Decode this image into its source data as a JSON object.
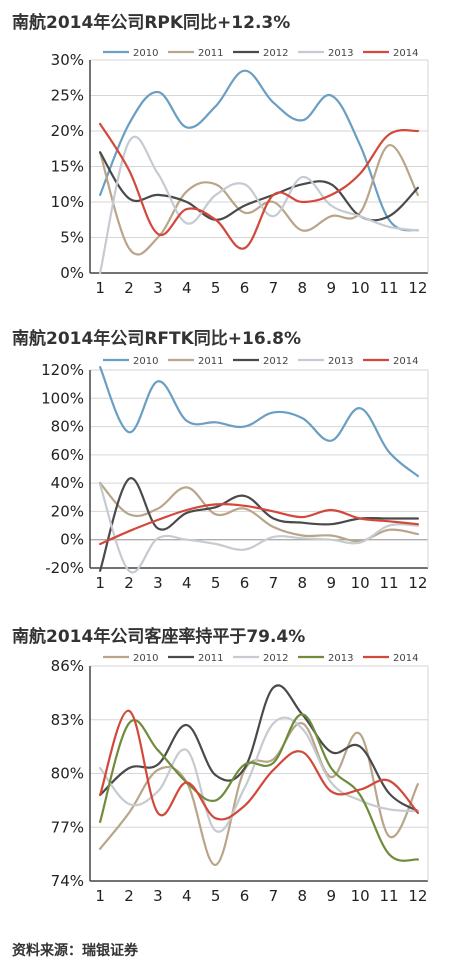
{
  "charts": [
    {
      "title": "南航2014年公司RPK同比+12.3%",
      "chart_data": {
        "type": "line",
        "categories": [
          "1",
          "2",
          "3",
          "4",
          "5",
          "6",
          "7",
          "8",
          "9",
          "10",
          "11",
          "12"
        ],
        "ylim": [
          0,
          30
        ],
        "yticks": [
          0,
          5,
          10,
          15,
          20,
          25,
          30
        ],
        "yticklabels": [
          "0%",
          "5%",
          "10%",
          "15%",
          "20%",
          "25%",
          "30%"
        ],
        "series": [
          {
            "name": "2010",
            "color": "#6a9ec2",
            "values": [
              11,
              21,
              25.5,
              20.5,
              23.5,
              28.5,
              24,
              21.5,
              25,
              18,
              7.5,
              6
            ]
          },
          {
            "name": "2011",
            "color": "#b9a58a",
            "values": [
              17,
              3.5,
              5,
              11.5,
              12.5,
              8.5,
              10,
              6,
              8,
              8.5,
              18,
              11
            ]
          },
          {
            "name": "2012",
            "color": "#4a4a4a",
            "values": [
              17,
              10.5,
              11,
              10,
              7.5,
              9.5,
              11,
              12.5,
              12.5,
              8,
              8,
              12
            ]
          },
          {
            "name": "2013",
            "color": "#c5cbd1",
            "values": [
              0,
              18.5,
              14,
              7,
              11,
              12.5,
              8,
              13.5,
              9.5,
              8,
              6.5,
              6
            ]
          },
          {
            "name": "2014",
            "color": "#d2493b",
            "values": [
              21,
              14.5,
              5.5,
              9,
              7.5,
              3.5,
              11,
              10,
              11,
              14,
              19.5,
              20
            ]
          }
        ]
      }
    },
    {
      "title": "南航2014年公司RFTK同比+16.8%",
      "chart_data": {
        "type": "line",
        "categories": [
          "1",
          "2",
          "3",
          "4",
          "5",
          "6",
          "7",
          "8",
          "9",
          "10",
          "11",
          "12"
        ],
        "ylim": [
          -20,
          120
        ],
        "yticks": [
          -20,
          0,
          20,
          40,
          60,
          80,
          100,
          120
        ],
        "yticklabels": [
          "-20%",
          "0%",
          "20%",
          "40%",
          "60%",
          "80%",
          "100%",
          "120%"
        ],
        "series": [
          {
            "name": "2010",
            "color": "#6a9ec2",
            "values": [
              122,
              76,
              112,
              84,
              83,
              80,
              90,
              86,
              70,
              93,
              62,
              45
            ]
          },
          {
            "name": "2011",
            "color": "#b9a58a",
            "values": [
              40,
              18,
              22,
              37,
              18,
              22,
              9,
              3,
              3,
              -1,
              7,
              4
            ]
          },
          {
            "name": "2012",
            "color": "#4a4a4a",
            "values": [
              -22,
              43,
              8,
              19,
              23,
              31,
              15,
              12,
              11,
              15,
              15,
              15
            ]
          },
          {
            "name": "2013",
            "color": "#c5cbd1",
            "values": [
              39,
              -22,
              1,
              0,
              -3,
              -7,
              2,
              1,
              0,
              -2,
              10,
              10
            ]
          },
          {
            "name": "2014",
            "color": "#d2493b",
            "values": [
              -3,
              6,
              14,
              21,
              25,
              24,
              20,
              16,
              21,
              15,
              13,
              11
            ]
          }
        ]
      }
    },
    {
      "title": "南航2014年公司客座率持平于79.4%",
      "chart_data": {
        "type": "line",
        "categories": [
          "1",
          "2",
          "3",
          "4",
          "5",
          "6",
          "7",
          "8",
          "9",
          "10",
          "11",
          "12"
        ],
        "ylim": [
          74,
          86
        ],
        "yticks": [
          74,
          77,
          80,
          83,
          86
        ],
        "yticklabels": [
          "74%",
          "77%",
          "80%",
          "83%",
          "86%"
        ],
        "series": [
          {
            "name": "2010",
            "color": "#b9a58a",
            "values": [
              75.8,
              77.8,
              80.2,
              79.5,
              74.9,
              80.2,
              80.8,
              82.8,
              79.8,
              82.2,
              76.5,
              79.4
            ]
          },
          {
            "name": "2011",
            "color": "#4a4a4a",
            "values": [
              78.8,
              80.3,
              80.5,
              82.7,
              79.9,
              80.3,
              84.8,
              83.3,
              81.2,
              81.5,
              78.9,
              77.9
            ]
          },
          {
            "name": "2012",
            "color": "#c5cbd1",
            "values": [
              80.3,
              78.3,
              79.0,
              81.3,
              76.8,
              79.2,
              82.8,
              82.5,
              79.5,
              78.5,
              78.0,
              77.9
            ]
          },
          {
            "name": "2013",
            "color": "#6e8c3c",
            "values": [
              77.3,
              82.8,
              81.3,
              79.5,
              78.5,
              80.5,
              80.6,
              83.3,
              80.3,
              78.8,
              75.5,
              75.2
            ]
          },
          {
            "name": "2014",
            "color": "#d2493b",
            "values": [
              78.8,
              83.5,
              77.8,
              79.5,
              77.5,
              78.2,
              80.2,
              81.2,
              79.0,
              79.1,
              79.6,
              77.8
            ]
          }
        ]
      }
    }
  ],
  "source": "资料来源：瑞银证券"
}
